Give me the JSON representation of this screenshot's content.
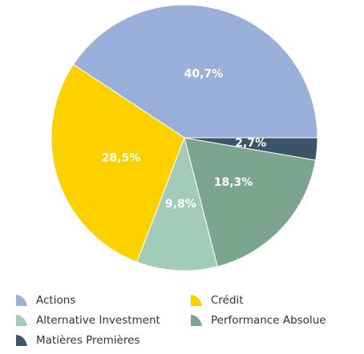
{
  "chart_data": {
    "type": "pie",
    "categories": [
      "Actions",
      "Crédit",
      "Alternative Investment",
      "Performance Absolue",
      "Matières Premières"
    ],
    "values": [
      40.7,
      28.5,
      9.8,
      18.3,
      2.7
    ],
    "value_labels": [
      "40,7%",
      "28,5%",
      "9,8%",
      "18,3%",
      "2,7%"
    ],
    "colors": [
      "#9aafd9",
      "#fdd000",
      "#a2cbb8",
      "#7ba58f",
      "#3d5468"
    ]
  }
}
